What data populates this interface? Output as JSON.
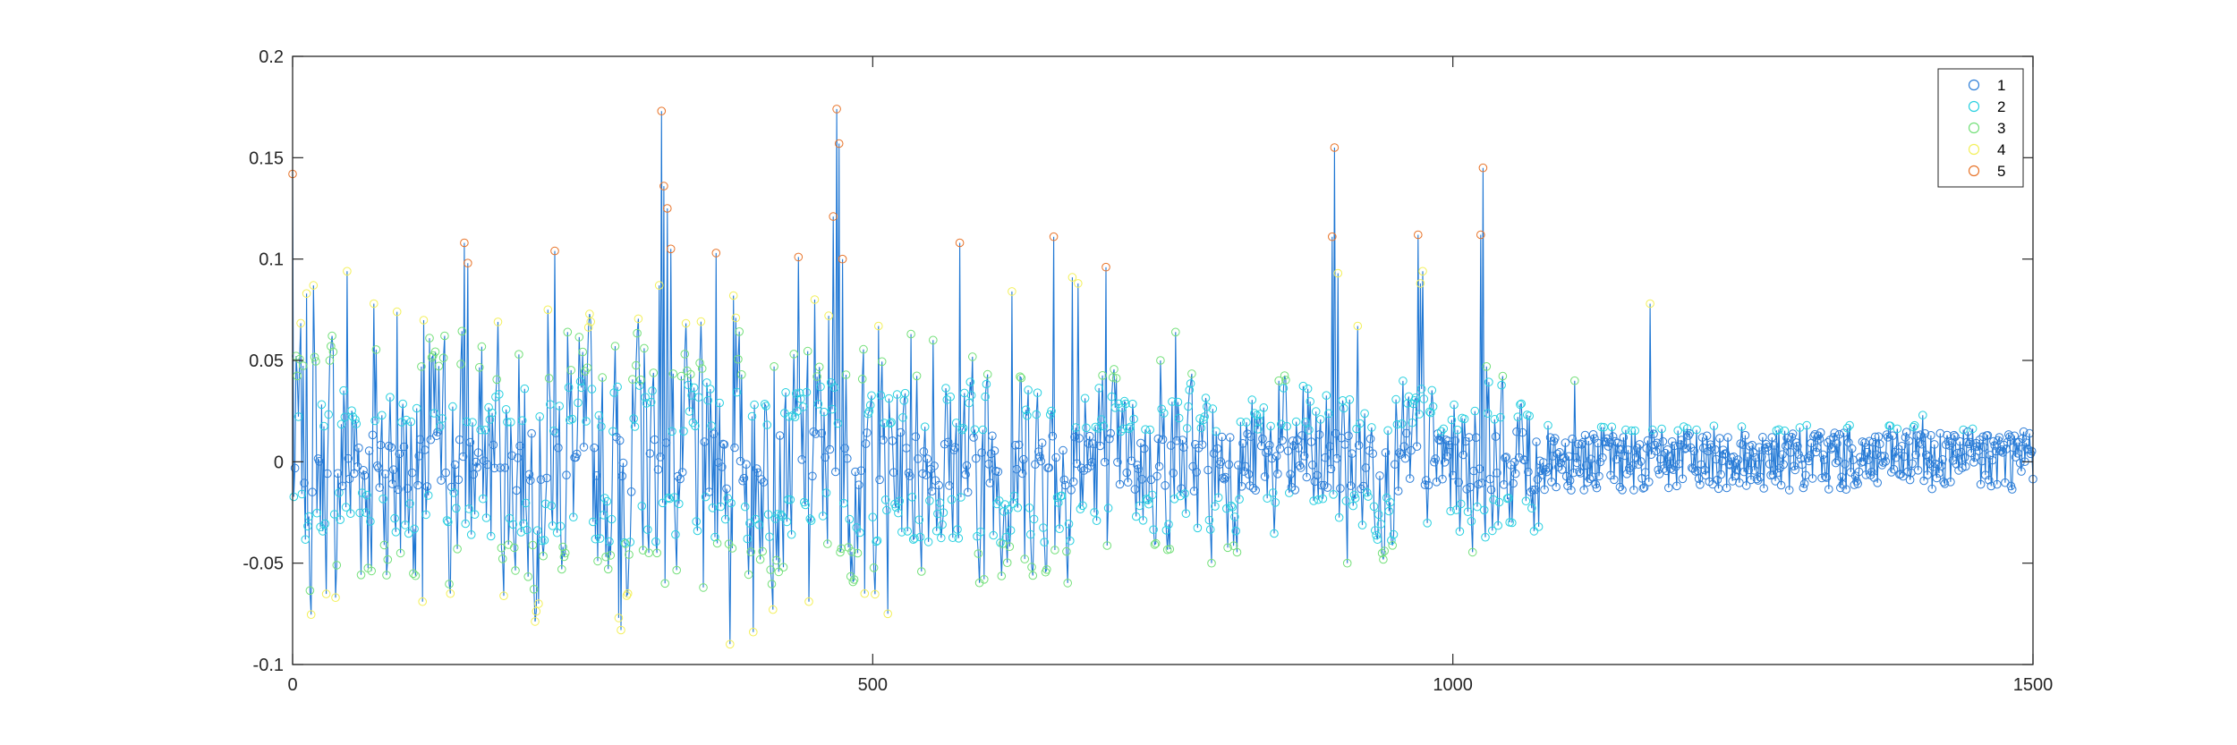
{
  "chart_data": {
    "type": "scatter",
    "title": "",
    "xlabel": "",
    "ylabel": "",
    "xlim": [
      0,
      1500
    ],
    "ylim": [
      -0.1,
      0.2
    ],
    "xticks": [
      "0",
      "500",
      "1000",
      "1500"
    ],
    "yticks": [
      "-0.1",
      "-0.05",
      "0",
      "0.05",
      "0.1",
      "0.15",
      "0.2"
    ],
    "grid": false,
    "legend_position": "top-right",
    "line_color": "#1f77d4",
    "legend": [
      {
        "label": "1",
        "color": "#2f7fd8"
      },
      {
        "label": "2",
        "color": "#29d0e0"
      },
      {
        "label": "3",
        "color": "#74e07a"
      },
      {
        "label": "4",
        "color": "#f3f05a"
      },
      {
        "label": "5",
        "color": "#e8742a"
      }
    ],
    "category_thresholds": [
      0.015,
      0.04,
      0.065,
      0.095
    ],
    "noise_seed": 7,
    "peaks": [
      {
        "x": 0,
        "y": 0.142
      },
      {
        "x": 12,
        "y": 0.083
      },
      {
        "x": 18,
        "y": 0.087
      },
      {
        "x": 37,
        "y": -0.067
      },
      {
        "x": 47,
        "y": 0.094
      },
      {
        "x": 70,
        "y": 0.078
      },
      {
        "x": 90,
        "y": 0.074
      },
      {
        "x": 112,
        "y": -0.069
      },
      {
        "x": 118,
        "y": 0.061
      },
      {
        "x": 148,
        "y": 0.108
      },
      {
        "x": 151,
        "y": 0.098
      },
      {
        "x": 177,
        "y": 0.069
      },
      {
        "x": 195,
        "y": 0.053
      },
      {
        "x": 212,
        "y": -0.07
      },
      {
        "x": 220,
        "y": 0.075
      },
      {
        "x": 226,
        "y": 0.104
      },
      {
        "x": 237,
        "y": 0.064
      },
      {
        "x": 283,
        "y": -0.083
      },
      {
        "x": 281,
        "y": -0.077
      },
      {
        "x": 289,
        "y": -0.065
      },
      {
        "x": 303,
        "y": 0.056
      },
      {
        "x": 316,
        "y": 0.087
      },
      {
        "x": 318,
        "y": 0.173
      },
      {
        "x": 320,
        "y": 0.136
      },
      {
        "x": 323,
        "y": 0.125
      },
      {
        "x": 326,
        "y": 0.105
      },
      {
        "x": 354,
        "y": -0.062
      },
      {
        "x": 365,
        "y": 0.103
      },
      {
        "x": 377,
        "y": -0.09
      },
      {
        "x": 380,
        "y": 0.082
      },
      {
        "x": 382,
        "y": 0.071
      },
      {
        "x": 397,
        "y": -0.084
      },
      {
        "x": 415,
        "y": 0.047
      },
      {
        "x": 423,
        "y": -0.052
      },
      {
        "x": 436,
        "y": 0.101
      },
      {
        "x": 445,
        "y": -0.069
      },
      {
        "x": 450,
        "y": 0.08
      },
      {
        "x": 462,
        "y": 0.072
      },
      {
        "x": 466,
        "y": 0.121
      },
      {
        "x": 469,
        "y": 0.174
      },
      {
        "x": 471,
        "y": 0.157
      },
      {
        "x": 474,
        "y": 0.1
      },
      {
        "x": 493,
        "y": -0.065
      },
      {
        "x": 505,
        "y": 0.067
      },
      {
        "x": 513,
        "y": -0.075
      },
      {
        "x": 533,
        "y": 0.063
      },
      {
        "x": 552,
        "y": 0.06
      },
      {
        "x": 575,
        "y": 0.108
      },
      {
        "x": 596,
        "y": -0.058
      },
      {
        "x": 620,
        "y": 0.084
      },
      {
        "x": 631,
        "y": -0.048
      },
      {
        "x": 656,
        "y": 0.111
      },
      {
        "x": 672,
        "y": 0.091
      },
      {
        "x": 677,
        "y": 0.088
      },
      {
        "x": 701,
        "y": 0.096
      },
      {
        "x": 748,
        "y": 0.05
      },
      {
        "x": 761,
        "y": 0.064
      },
      {
        "x": 792,
        "y": -0.05
      },
      {
        "x": 850,
        "y": 0.04
      },
      {
        "x": 875,
        "y": 0.036
      },
      {
        "x": 896,
        "y": 0.111
      },
      {
        "x": 898,
        "y": 0.155
      },
      {
        "x": 901,
        "y": 0.093
      },
      {
        "x": 909,
        "y": -0.05
      },
      {
        "x": 918,
        "y": 0.067
      },
      {
        "x": 970,
        "y": 0.112
      },
      {
        "x": 972,
        "y": 0.088
      },
      {
        "x": 974,
        "y": 0.094
      },
      {
        "x": 1024,
        "y": 0.112
      },
      {
        "x": 1026,
        "y": 0.145
      },
      {
        "x": 1029,
        "y": 0.047
      },
      {
        "x": 1034,
        "y": -0.034
      },
      {
        "x": 1105,
        "y": 0.04
      },
      {
        "x": 1170,
        "y": 0.078
      },
      {
        "x": 1237,
        "y": 0.012
      },
      {
        "x": 1405,
        "y": 0.023
      },
      {
        "x": 1496,
        "y": 0.006
      }
    ]
  }
}
